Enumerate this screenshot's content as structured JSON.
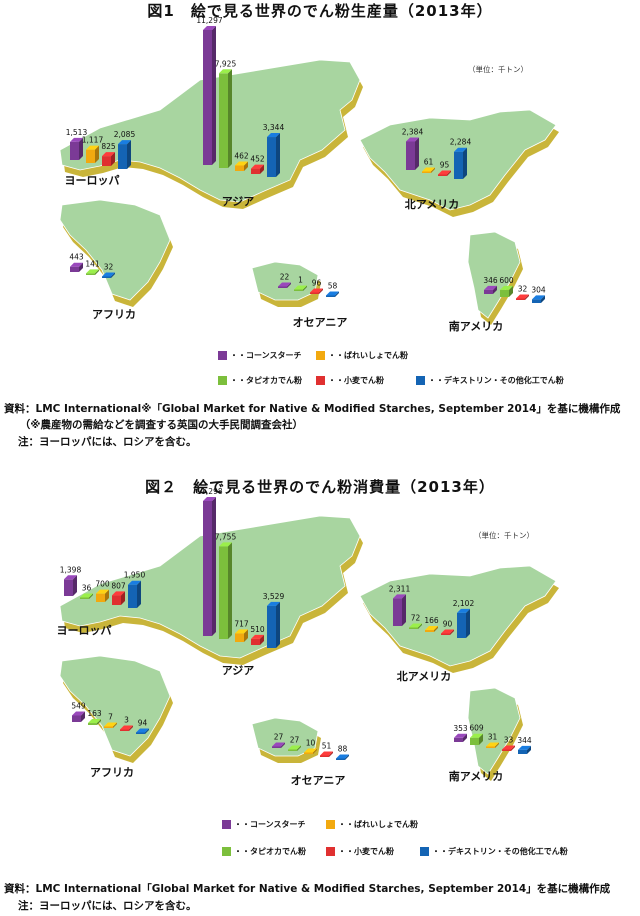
{
  "figures": [
    {
      "title": "図1　絵で見る世界のでん粉生産量（2013年）",
      "unit": "（単位：千トン）",
      "regions": [
        {
          "name": "ヨーロッパ",
          "values": [
            1513,
            1117,
            825,
            2085
          ],
          "series": [
            "corn",
            "potato",
            "wheat",
            "dextrin"
          ]
        },
        {
          "name": "アジア",
          "values": [
            11297,
            7925,
            462,
            452,
            3344
          ],
          "series": [
            "corn",
            "tapioca",
            "potato",
            "wheat",
            "dextrin"
          ]
        },
        {
          "name": "北アメリカ",
          "values": [
            2384,
            61,
            95,
            2284
          ],
          "series": [
            "corn",
            "potato",
            "wheat",
            "dextrin"
          ]
        },
        {
          "name": "アフリカ",
          "values": [
            443,
            141,
            32
          ],
          "series": [
            "corn",
            "tapioca",
            "dextrin"
          ]
        },
        {
          "name": "オセアニア",
          "values": [
            22,
            1,
            96,
            58
          ],
          "series": [
            "corn",
            "tapioca",
            "wheat",
            "dextrin"
          ]
        },
        {
          "name": "南アメリカ",
          "values": [
            346,
            600,
            32,
            304
          ],
          "series": [
            "corn",
            "tapioca",
            "wheat",
            "dextrin"
          ]
        }
      ],
      "source": "資料：LMC International※「Global Market for Native & Modified Starches, September 2014」を基に機構作成",
      "source_sub": "　　（※農産物の需給などを調査する英国の大手民間調査会社）",
      "note": "注：ヨーロッパには、ロシアを含む。"
    },
    {
      "title": "図２　絵で見る世界のでん粉消費量（2013年）",
      "unit": "（単位：千トン）",
      "regions": [
        {
          "name": "ヨーロッパ",
          "values": [
            1398,
            36,
            700,
            807,
            1950
          ],
          "series": [
            "corn",
            "tapioca",
            "potato",
            "wheat",
            "dextrin"
          ]
        },
        {
          "name": "アジア",
          "values": [
            11298,
            7755,
            717,
            510,
            3529
          ],
          "series": [
            "corn",
            "tapioca",
            "potato",
            "wheat",
            "dextrin"
          ]
        },
        {
          "name": "北アメリカ",
          "values": [
            2311,
            72,
            166,
            90,
            2102
          ],
          "series": [
            "corn",
            "tapioca",
            "potato",
            "wheat",
            "dextrin"
          ]
        },
        {
          "name": "アフリカ",
          "values": [
            549,
            163,
            7,
            3,
            94
          ],
          "series": [
            "corn",
            "tapioca",
            "potato",
            "wheat",
            "dextrin"
          ]
        },
        {
          "name": "オセアニア",
          "values": [
            27,
            27,
            10,
            51,
            88
          ],
          "series": [
            "corn",
            "tapioca",
            "potato",
            "wheat",
            "dextrin"
          ]
        },
        {
          "name": "南アメリカ",
          "values": [
            353,
            609,
            31,
            33,
            344
          ],
          "series": [
            "corn",
            "tapioca",
            "potato",
            "wheat",
            "dextrin"
          ]
        }
      ],
      "source": "資料：LMC International「Global Market for Native & Modified Starches, September 2014」を基に機構作成",
      "note": "注：ヨーロッパには、ロシアを含む。"
    }
  ],
  "legend": {
    "corn": "・・コーンスターチ",
    "potato": "・・ばれいしょでん粉",
    "tapioca": "・・タピオカでん粉",
    "wheat": "・・小麦でん粉",
    "dextrin": "・・デキストリン・その他化工でん粉"
  },
  "colors": {
    "corn": "#7b3a96",
    "tapioca": "#7cbf3c",
    "potato": "#f2a90f",
    "wheat": "#e03030",
    "dextrin": "#1464b4",
    "land": "#a8d5a0",
    "land_edge": "#c9b53a"
  },
  "chart_data": [
    {
      "type": "bar",
      "title": "図1　絵で見る世界のでん粉生産量（2013年）",
      "unit": "千トン",
      "categories": [
        "ヨーロッパ",
        "アジア",
        "北アメリカ",
        "アフリカ",
        "オセアニア",
        "南アメリカ"
      ],
      "series": [
        {
          "name": "コーンスターチ",
          "values": [
            1513,
            11297,
            2384,
            443,
            22,
            346
          ]
        },
        {
          "name": "タピオカでん粉",
          "values": [
            null,
            7925,
            null,
            141,
            1,
            600
          ]
        },
        {
          "name": "ばれいしょでん粉",
          "values": [
            1117,
            462,
            61,
            null,
            null,
            null
          ]
        },
        {
          "name": "小麦でん粉",
          "values": [
            825,
            452,
            95,
            null,
            96,
            32
          ]
        },
        {
          "name": "デキストリン・その他化工でん粉",
          "values": [
            2085,
            3344,
            2284,
            32,
            58,
            304
          ]
        }
      ]
    },
    {
      "type": "bar",
      "title": "図２　絵で見る世界のでん粉消費量（2013年）",
      "unit": "千トン",
      "categories": [
        "ヨーロッパ",
        "アジア",
        "北アメリカ",
        "アフリカ",
        "オセアニア",
        "南アメリカ"
      ],
      "series": [
        {
          "name": "コーンスターチ",
          "values": [
            1398,
            11298,
            2311,
            549,
            27,
            353
          ]
        },
        {
          "name": "タピオカでん粉",
          "values": [
            36,
            7755,
            72,
            163,
            27,
            609
          ]
        },
        {
          "name": "ばれいしょでん粉",
          "values": [
            700,
            717,
            166,
            7,
            10,
            31
          ]
        },
        {
          "name": "小麦でん粉",
          "values": [
            807,
            510,
            90,
            3,
            51,
            33
          ]
        },
        {
          "name": "デキストリン・その他化工でん粉",
          "values": [
            1950,
            3529,
            2102,
            94,
            88,
            344
          ]
        }
      ]
    }
  ]
}
